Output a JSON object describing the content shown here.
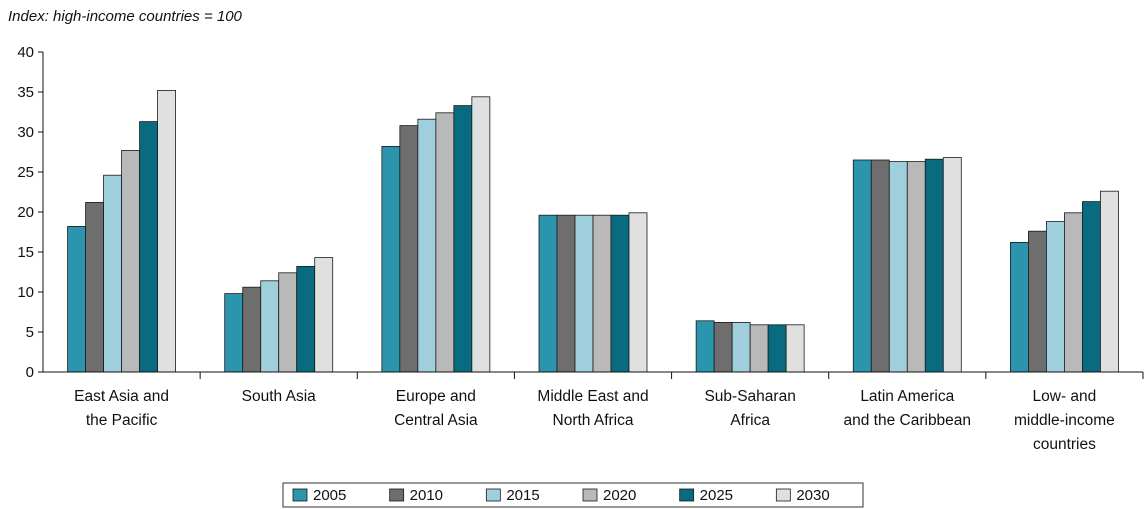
{
  "chart_data": {
    "type": "bar",
    "subtitle": "Index: high-income countries = 100",
    "categories": [
      [
        "East Asia and",
        "the Pacific"
      ],
      [
        "South Asia"
      ],
      [
        "Europe and",
        "Central Asia"
      ],
      [
        "Middle East and",
        "North Africa"
      ],
      [
        "Sub-Saharan",
        "Africa"
      ],
      [
        "Latin America",
        "and the Caribbean"
      ],
      [
        "Low- and",
        "middle-income",
        "countries"
      ]
    ],
    "series": [
      {
        "name": "2005",
        "color": "#2b95ad",
        "values": [
          18.2,
          9.8,
          28.2,
          19.6,
          6.4,
          26.5,
          16.2
        ]
      },
      {
        "name": "2010",
        "color": "#6e6e6e",
        "values": [
          21.2,
          10.6,
          30.8,
          19.6,
          6.2,
          26.5,
          17.6
        ]
      },
      {
        "name": "2015",
        "color": "#9fcfdc",
        "values": [
          24.6,
          11.4,
          31.6,
          19.6,
          6.2,
          26.3,
          18.8
        ]
      },
      {
        "name": "2020",
        "color": "#b9b9b9",
        "values": [
          27.7,
          12.4,
          32.4,
          19.6,
          5.9,
          26.3,
          19.9
        ]
      },
      {
        "name": "2025",
        "color": "#086b80",
        "values": [
          31.3,
          13.2,
          33.3,
          19.6,
          5.9,
          26.6,
          21.3
        ]
      },
      {
        "name": "2030",
        "color": "#e0e0e0",
        "values": [
          35.2,
          14.3,
          34.4,
          19.9,
          5.9,
          26.8,
          22.6
        ]
      }
    ],
    "ylim": [
      0,
      40
    ],
    "yticks": [
      0,
      5,
      10,
      15,
      20,
      25,
      30,
      35,
      40
    ],
    "legend_position": "bottom-center",
    "grid": false
  }
}
